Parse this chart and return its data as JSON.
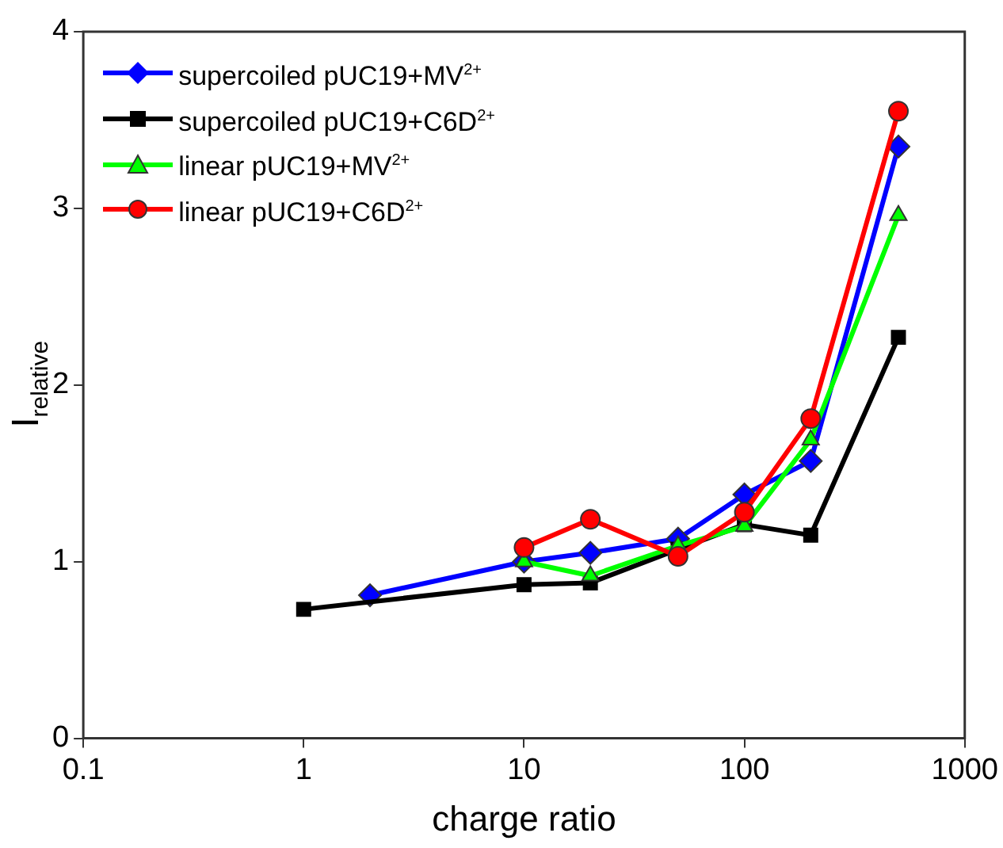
{
  "chart_data": {
    "type": "line",
    "xlabel": "charge ratio",
    "ylabel": "I$_{relative}$",
    "log": "x",
    "xlim": [
      0.1,
      1000
    ],
    "xticks": [
      0.1,
      1,
      10,
      100,
      1000
    ],
    "ylim": [
      0,
      4
    ],
    "yticks": [
      0,
      1,
      2,
      3,
      4
    ],
    "grid": false,
    "legend": "top left",
    "series": [
      {
        "name": "supercoiled pUC19+MV$^{2+}$",
        "color": "#0000ff",
        "marker": "diamond",
        "x": [
          2,
          10,
          20,
          50,
          100,
          200,
          500
        ],
        "values": [
          0.81,
          1.0,
          1.05,
          1.13,
          1.38,
          1.57,
          3.35
        ]
      },
      {
        "name": "supercoiled pUC19+C6D$^{2+}$",
        "color": "#000000",
        "marker": "square",
        "x": [
          1,
          10,
          20,
          50,
          100,
          200,
          500
        ],
        "values": [
          0.73,
          0.87,
          0.88,
          1.07,
          1.21,
          1.15,
          2.27
        ]
      },
      {
        "name": "linear pUC19+MV$^{2+}$",
        "color": "#00ff00",
        "marker": "triangle",
        "x": [
          10,
          20,
          50,
          100,
          200,
          500
        ],
        "values": [
          1.0,
          0.92,
          1.09,
          1.2,
          1.69,
          2.96
        ]
      },
      {
        "name": "linear pUC19+C6D$^{2+}$",
        "color": "#ff0000",
        "marker": "circle",
        "x": [
          10,
          20,
          50,
          100,
          200,
          500
        ],
        "values": [
          1.08,
          1.24,
          1.03,
          1.28,
          1.81,
          3.55
        ]
      }
    ]
  }
}
